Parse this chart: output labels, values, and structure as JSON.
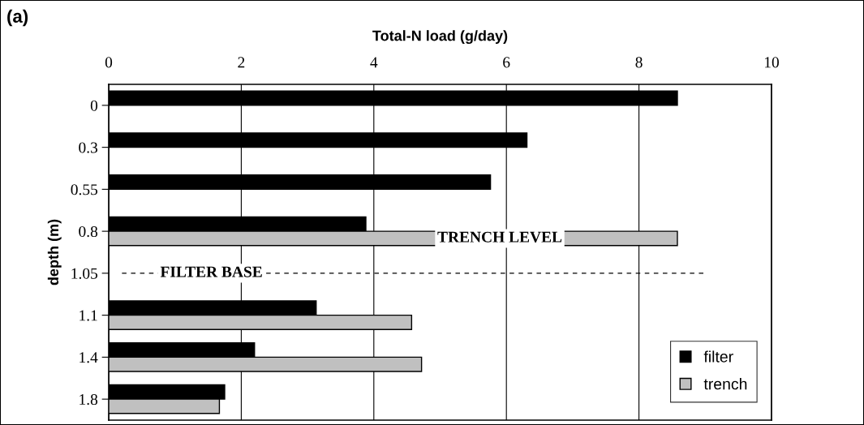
{
  "chart_data": {
    "type": "bar",
    "orientation": "horizontal",
    "title": "(a)",
    "xlabel": "Total-N load (g/day)",
    "ylabel": "depth (m)",
    "categories": [
      "0",
      "0.3",
      "0.55",
      "0.8",
      "1.05",
      "1.1",
      "1.4",
      "1.8"
    ],
    "series": [
      {
        "name": "filter",
        "color": "#000000",
        "values": [
          8.58,
          6.31,
          5.76,
          3.88,
          null,
          3.13,
          2.2,
          1.75
        ]
      },
      {
        "name": "trench",
        "color": "#c0c0c0",
        "values": [
          null,
          null,
          null,
          8.58,
          null,
          4.57,
          4.72,
          1.67
        ]
      }
    ],
    "xlim": [
      0,
      10
    ],
    "xticks": [
      0,
      2,
      4,
      6,
      8,
      10
    ],
    "grid": "x",
    "legend": "bottom right",
    "ref_lines": [
      {
        "axis": "y",
        "value": "1.05",
        "label": "FILTER BASE",
        "line_style": "dashed",
        "color": "#000000"
      }
    ],
    "annotations": [
      {
        "text": "TRENCH LEVEL",
        "x": 5.9,
        "y": "0.8"
      }
    ]
  }
}
